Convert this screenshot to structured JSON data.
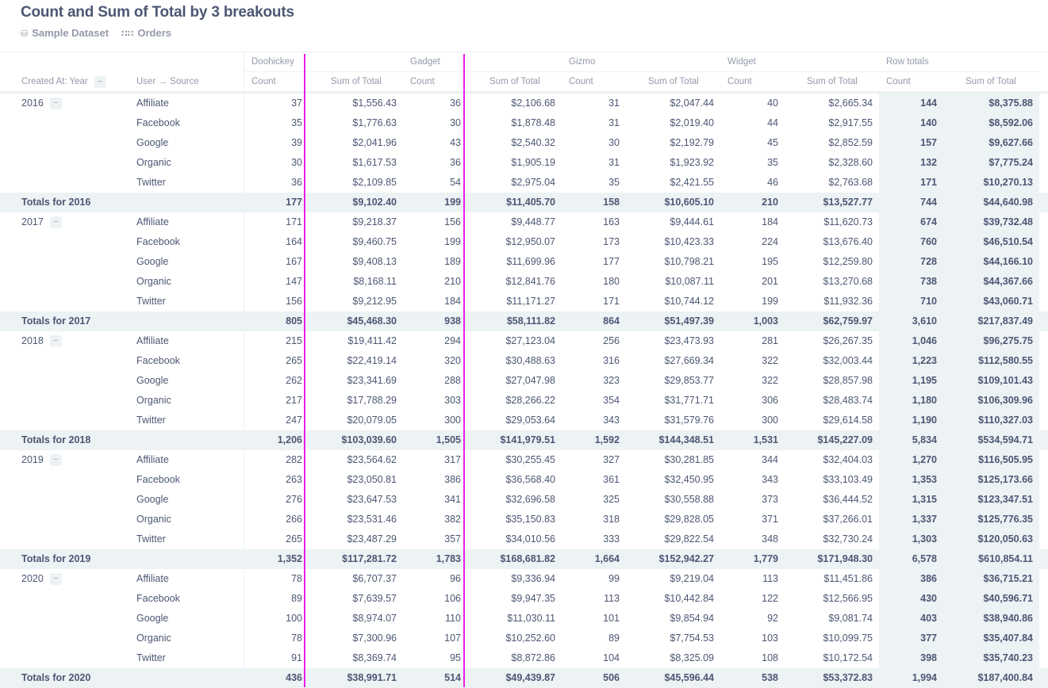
{
  "header": {
    "title": "Count and Sum of Total by 3 breakouts",
    "database": "Sample Dataset",
    "table": "Orders",
    "database_icon": "database-icon",
    "table_icon": "grid-icon"
  },
  "columns": {
    "row_header_1": "Created At: Year",
    "row_header_2": "User → Source",
    "groups": [
      "Doohickey",
      "Gadget",
      "Gizmo",
      "Widget",
      "Row totals"
    ],
    "count_label": "Count",
    "sum_label": "Sum of Total"
  },
  "colors": {
    "accent_line": "#e81ee8",
    "totals_bg": "#edf2f5",
    "text": "#4c5773"
  },
  "years": [
    {
      "year": "2016",
      "rows": [
        {
          "source": "Affiliate",
          "values": [
            "37",
            "$1,556.43",
            "36",
            "$2,106.68",
            "31",
            "$2,047.44",
            "40",
            "$2,665.34",
            "144",
            "$8,375.88"
          ]
        },
        {
          "source": "Facebook",
          "values": [
            "35",
            "$1,776.63",
            "30",
            "$1,878.48",
            "31",
            "$2,019.40",
            "44",
            "$2,917.55",
            "140",
            "$8,592.06"
          ]
        },
        {
          "source": "Google",
          "values": [
            "39",
            "$2,041.96",
            "43",
            "$2,540.32",
            "30",
            "$2,192.79",
            "45",
            "$2,852.59",
            "157",
            "$9,627.66"
          ]
        },
        {
          "source": "Organic",
          "values": [
            "30",
            "$1,617.53",
            "36",
            "$1,905.19",
            "31",
            "$1,923.92",
            "35",
            "$2,328.60",
            "132",
            "$7,775.24"
          ]
        },
        {
          "source": "Twitter",
          "values": [
            "36",
            "$2,109.85",
            "54",
            "$2,975.04",
            "35",
            "$2,421.55",
            "46",
            "$2,763.68",
            "171",
            "$10,270.13"
          ]
        }
      ],
      "total_label": "Totals for 2016",
      "totals": [
        "177",
        "$9,102.40",
        "199",
        "$11,405.70",
        "158",
        "$10,605.10",
        "210",
        "$13,527.77",
        "744",
        "$44,640.98"
      ]
    },
    {
      "year": "2017",
      "rows": [
        {
          "source": "Affiliate",
          "values": [
            "171",
            "$9,218.37",
            "156",
            "$9,448.77",
            "163",
            "$9,444.61",
            "184",
            "$11,620.73",
            "674",
            "$39,732.48"
          ]
        },
        {
          "source": "Facebook",
          "values": [
            "164",
            "$9,460.75",
            "199",
            "$12,950.07",
            "173",
            "$10,423.33",
            "224",
            "$13,676.40",
            "760",
            "$46,510.54"
          ]
        },
        {
          "source": "Google",
          "values": [
            "167",
            "$9,408.13",
            "189",
            "$11,699.96",
            "177",
            "$10,798.21",
            "195",
            "$12,259.80",
            "728",
            "$44,166.10"
          ]
        },
        {
          "source": "Organic",
          "values": [
            "147",
            "$8,168.11",
            "210",
            "$12,841.76",
            "180",
            "$10,087.11",
            "201",
            "$13,270.68",
            "738",
            "$44,367.66"
          ]
        },
        {
          "source": "Twitter",
          "values": [
            "156",
            "$9,212.95",
            "184",
            "$11,171.27",
            "171",
            "$10,744.12",
            "199",
            "$11,932.36",
            "710",
            "$43,060.71"
          ]
        }
      ],
      "total_label": "Totals for 2017",
      "totals": [
        "805",
        "$45,468.30",
        "938",
        "$58,111.82",
        "864",
        "$51,497.39",
        "1,003",
        "$62,759.97",
        "3,610",
        "$217,837.49"
      ]
    },
    {
      "year": "2018",
      "rows": [
        {
          "source": "Affiliate",
          "values": [
            "215",
            "$19,411.42",
            "294",
            "$27,123.04",
            "256",
            "$23,473.93",
            "281",
            "$26,267.35",
            "1,046",
            "$96,275.75"
          ]
        },
        {
          "source": "Facebook",
          "values": [
            "265",
            "$22,419.14",
            "320",
            "$30,488.63",
            "316",
            "$27,669.34",
            "322",
            "$32,003.44",
            "1,223",
            "$112,580.55"
          ]
        },
        {
          "source": "Google",
          "values": [
            "262",
            "$23,341.69",
            "288",
            "$27,047.98",
            "323",
            "$29,853.77",
            "322",
            "$28,857.98",
            "1,195",
            "$109,101.43"
          ]
        },
        {
          "source": "Organic",
          "values": [
            "217",
            "$17,788.29",
            "303",
            "$28,266.22",
            "354",
            "$31,771.71",
            "306",
            "$28,483.74",
            "1,180",
            "$106,309.96"
          ]
        },
        {
          "source": "Twitter",
          "values": [
            "247",
            "$20,079.05",
            "300",
            "$29,053.64",
            "343",
            "$31,579.76",
            "300",
            "$29,614.58",
            "1,190",
            "$110,327.03"
          ]
        }
      ],
      "total_label": "Totals for 2018",
      "totals": [
        "1,206",
        "$103,039.60",
        "1,505",
        "$141,979.51",
        "1,592",
        "$144,348.51",
        "1,531",
        "$145,227.09",
        "5,834",
        "$534,594.71"
      ]
    },
    {
      "year": "2019",
      "rows": [
        {
          "source": "Affiliate",
          "values": [
            "282",
            "$23,564.62",
            "317",
            "$30,255.45",
            "327",
            "$30,281.85",
            "344",
            "$32,404.03",
            "1,270",
            "$116,505.95"
          ]
        },
        {
          "source": "Facebook",
          "values": [
            "263",
            "$23,050.81",
            "386",
            "$36,568.40",
            "361",
            "$32,450.95",
            "343",
            "$33,103.49",
            "1,353",
            "$125,173.66"
          ]
        },
        {
          "source": "Google",
          "values": [
            "276",
            "$23,647.53",
            "341",
            "$32,696.58",
            "325",
            "$30,558.88",
            "373",
            "$36,444.52",
            "1,315",
            "$123,347.51"
          ]
        },
        {
          "source": "Organic",
          "values": [
            "266",
            "$23,531.46",
            "382",
            "$35,150.83",
            "318",
            "$29,828.05",
            "371",
            "$37,266.01",
            "1,337",
            "$125,776.35"
          ]
        },
        {
          "source": "Twitter",
          "values": [
            "265",
            "$23,487.29",
            "357",
            "$34,010.56",
            "333",
            "$29,822.54",
            "348",
            "$32,730.24",
            "1,303",
            "$120,050.63"
          ]
        }
      ],
      "total_label": "Totals for 2019",
      "totals": [
        "1,352",
        "$117,281.72",
        "1,783",
        "$168,681.82",
        "1,664",
        "$152,942.27",
        "1,779",
        "$171,948.30",
        "6,578",
        "$610,854.11"
      ]
    },
    {
      "year": "2020",
      "rows": [
        {
          "source": "Affiliate",
          "values": [
            "78",
            "$6,707.37",
            "96",
            "$9,336.94",
            "99",
            "$9,219.04",
            "113",
            "$11,451.86",
            "386",
            "$36,715.21"
          ]
        },
        {
          "source": "Facebook",
          "values": [
            "89",
            "$7,639.57",
            "106",
            "$9,947.35",
            "113",
            "$10,442.84",
            "122",
            "$12,566.95",
            "430",
            "$40,596.71"
          ]
        },
        {
          "source": "Google",
          "values": [
            "100",
            "$8,974.07",
            "110",
            "$11,030.11",
            "101",
            "$9,854.94",
            "92",
            "$9,081.74",
            "403",
            "$38,940.86"
          ]
        },
        {
          "source": "Organic",
          "values": [
            "78",
            "$7,300.96",
            "107",
            "$10,252.60",
            "89",
            "$7,754.53",
            "103",
            "$10,099.75",
            "377",
            "$35,407.84"
          ]
        },
        {
          "source": "Twitter",
          "values": [
            "91",
            "$8,369.74",
            "95",
            "$8,872.86",
            "104",
            "$8,325.09",
            "108",
            "$10,172.54",
            "398",
            "$35,740.23"
          ]
        }
      ],
      "total_label": "Totals for 2020",
      "totals": [
        "436",
        "$38,991.71",
        "514",
        "$49,439.87",
        "506",
        "$45,596.44",
        "538",
        "$53,372.83",
        "1,994",
        "$187,400.84"
      ]
    }
  ],
  "collapse_glyph": "−"
}
